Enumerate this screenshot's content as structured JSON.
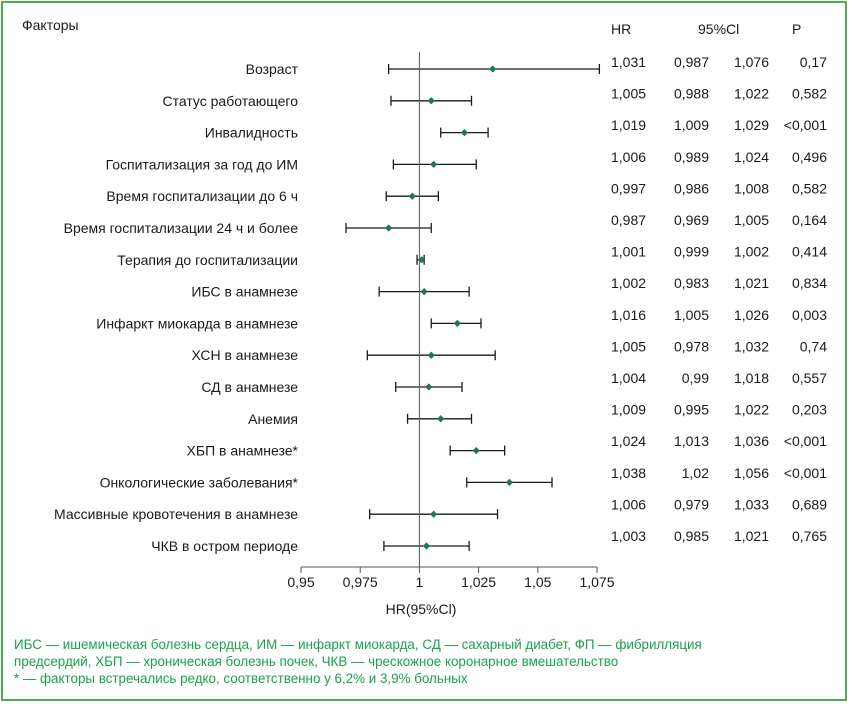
{
  "chart_data": {
    "type": "forest",
    "title": "Факторы",
    "xlabel": "HR(95%Cl)",
    "xlim": [
      0.95,
      1.075
    ],
    "reference_line": 1,
    "xticks": [
      "0,95",
      "0,975",
      "1",
      "1,025",
      "1,05",
      "1,075"
    ],
    "xtick_values": [
      0.95,
      0.975,
      1,
      1.025,
      1.05,
      1.075
    ],
    "table_headers": [
      "HR",
      "95%Cl",
      "P"
    ],
    "rows": [
      {
        "label": "Возраст",
        "hr": 1.031,
        "lo": 0.987,
        "hi": 1.076,
        "hr_text": "1,031",
        "lo_text": "0,987",
        "hi_text": "1,076",
        "p_text": "0,17"
      },
      {
        "label": "Статус работающего",
        "hr": 1.005,
        "lo": 0.988,
        "hi": 1.022,
        "hr_text": "1,005",
        "lo_text": "0,988",
        "hi_text": "1,022",
        "p_text": "0,582"
      },
      {
        "label": "Инвалидность",
        "hr": 1.019,
        "lo": 1.009,
        "hi": 1.029,
        "hr_text": "1,019",
        "lo_text": "1,009",
        "hi_text": "1,029",
        "p_text": "<0,001"
      },
      {
        "label": "Госпитализация за год до ИМ",
        "hr": 1.006,
        "lo": 0.989,
        "hi": 1.024,
        "hr_text": "1,006",
        "lo_text": "0,989",
        "hi_text": "1,024",
        "p_text": "0,496"
      },
      {
        "label": "Время госпитализации до 6 ч",
        "hr": 0.997,
        "lo": 0.986,
        "hi": 1.008,
        "hr_text": "0,997",
        "lo_text": "0,986",
        "hi_text": "1,008",
        "p_text": "0,582"
      },
      {
        "label": "Время госпитализации 24 ч и более",
        "hr": 0.987,
        "lo": 0.969,
        "hi": 1.005,
        "hr_text": "0,987",
        "lo_text": "0,969",
        "hi_text": "1,005",
        "p_text": "0,164"
      },
      {
        "label": "Терапия до госпитализации",
        "hr": 1.001,
        "lo": 0.999,
        "hi": 1.002,
        "hr_text": "1,001",
        "lo_text": "0,999",
        "hi_text": "1,002",
        "p_text": "0,414"
      },
      {
        "label": "ИБС в анамнезе",
        "hr": 1.002,
        "lo": 0.983,
        "hi": 1.021,
        "hr_text": "1,002",
        "lo_text": "0,983",
        "hi_text": "1,021",
        "p_text": "0,834"
      },
      {
        "label": "Инфаркт миокарда в анамнезе",
        "hr": 1.016,
        "lo": 1.005,
        "hi": 1.026,
        "hr_text": "1,016",
        "lo_text": "1,005",
        "hi_text": "1,026",
        "p_text": "0,003"
      },
      {
        "label": "ХСН в анамнезе",
        "hr": 1.005,
        "lo": 0.978,
        "hi": 1.032,
        "hr_text": "1,005",
        "lo_text": "0,978",
        "hi_text": "1,032",
        "p_text": "0,74"
      },
      {
        "label": "СД в анамнезе",
        "hr": 1.004,
        "lo": 0.99,
        "hi": 1.018,
        "hr_text": "1,004",
        "lo_text": "0,99",
        "hi_text": "1,018",
        "p_text": "0,557"
      },
      {
        "label": "Анемия",
        "hr": 1.009,
        "lo": 0.995,
        "hi": 1.022,
        "hr_text": "1,009",
        "lo_text": "0,995",
        "hi_text": "1,022",
        "p_text": "0,203"
      },
      {
        "label": "ХБП в анамнезе*",
        "hr": 1.024,
        "lo": 1.013,
        "hi": 1.036,
        "hr_text": "1,024",
        "lo_text": "1,013",
        "hi_text": "1,036",
        "p_text": "<0,001"
      },
      {
        "label": "Онкологические заболевания*",
        "hr": 1.038,
        "lo": 1.02,
        "hi": 1.056,
        "hr_text": "1,038",
        "lo_text": "1,02",
        "hi_text": "1,056",
        "p_text": "<0,001"
      },
      {
        "label": "Массивные кровотечения в анамнезе",
        "hr": 1.006,
        "lo": 0.979,
        "hi": 1.033,
        "hr_text": "1,006",
        "lo_text": "0,979",
        "hi_text": "1,033",
        "p_text": "0,689"
      },
      {
        "label": "ЧКВ в остром периоде",
        "hr": 1.003,
        "lo": 0.985,
        "hi": 1.021,
        "hr_text": "1,003",
        "lo_text": "0,985",
        "hi_text": "1,021",
        "p_text": "0,765"
      }
    ]
  },
  "footer": {
    "line1": "ИБС — ишемическая болезнь сердца, ИМ — инфаркт миокарда, СД — сахарный диабет, ФП — фибрилляция",
    "line2": "предсердий, ХБП — хроническая болезнь почек, ЧКВ — чрескожное коронарное вмешательство",
    "line3": "* — факторы встречались редко, соответственно у 6,2% и 3,9% больных"
  },
  "colors": {
    "border": "#4cae4f",
    "marker": "#1d7a4f",
    "footer_text": "#1aa34a",
    "text": "#1a1a1a"
  }
}
